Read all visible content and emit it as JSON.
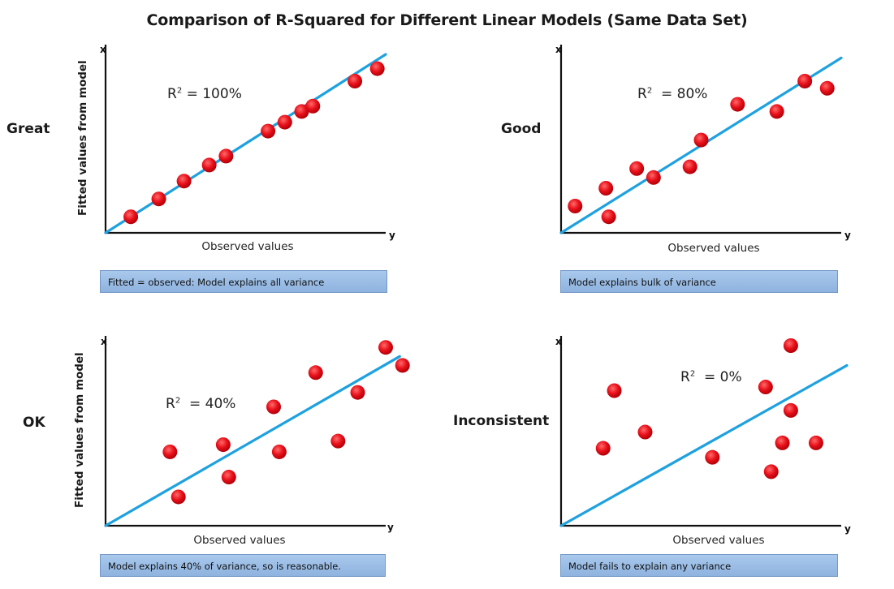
{
  "title": "Comparison of R-Squared for Different Linear Models (Same Data Set)",
  "panels": [
    {
      "rating": "Great",
      "ylabel": "Fitted values from model",
      "xlabel": "Observed values",
      "x_axis_letter": "y",
      "y_axis_letter": "x",
      "r2_prefix": "R",
      "r2_value": "= 100%",
      "caption": "Fitted = observed: Model explains all variance",
      "points": [
        [
          0.09,
          0.09
        ],
        [
          0.19,
          0.19
        ],
        [
          0.28,
          0.29
        ],
        [
          0.37,
          0.38
        ],
        [
          0.43,
          0.43
        ],
        [
          0.58,
          0.57
        ],
        [
          0.64,
          0.62
        ],
        [
          0.7,
          0.68
        ],
        [
          0.74,
          0.71
        ],
        [
          0.89,
          0.85
        ],
        [
          0.97,
          0.92
        ]
      ],
      "line": [
        [
          0,
          0
        ],
        [
          1,
          1.0
        ]
      ]
    },
    {
      "rating": "Good",
      "ylabel": "",
      "xlabel": "Observed values",
      "x_axis_letter": "y",
      "y_axis_letter": "x",
      "r2_prefix": "R",
      "r2_value": "= 80%",
      "caption": "Model explains bulk of variance",
      "points": [
        [
          0.05,
          0.15
        ],
        [
          0.16,
          0.25
        ],
        [
          0.17,
          0.09
        ],
        [
          0.27,
          0.36
        ],
        [
          0.33,
          0.31
        ],
        [
          0.46,
          0.37
        ],
        [
          0.5,
          0.52
        ],
        [
          0.63,
          0.72
        ],
        [
          0.77,
          0.68
        ],
        [
          0.87,
          0.85
        ],
        [
          0.95,
          0.81
        ]
      ],
      "line": [
        [
          0,
          0
        ],
        [
          1,
          0.98
        ]
      ]
    },
    {
      "rating": "OK",
      "ylabel": "Fitted values from model",
      "xlabel": "Observed values",
      "x_axis_letter": "y",
      "y_axis_letter": "x",
      "r2_prefix": "R",
      "r2_value": "= 40%",
      "caption": "Model explains 40% of variance, so is reasonable.",
      "points": [
        [
          0.23,
          0.41
        ],
        [
          0.26,
          0.16
        ],
        [
          0.42,
          0.45
        ],
        [
          0.44,
          0.27
        ],
        [
          0.6,
          0.66
        ],
        [
          0.62,
          0.41
        ],
        [
          0.75,
          0.85
        ],
        [
          0.83,
          0.47
        ],
        [
          0.9,
          0.74
        ],
        [
          1.0,
          0.99
        ],
        [
          1.06,
          0.89
        ]
      ],
      "line": [
        [
          0,
          0
        ],
        [
          1.05,
          0.94
        ]
      ]
    },
    {
      "rating": "Inconsistent",
      "ylabel": "",
      "xlabel": "Observed values",
      "x_axis_letter": "y",
      "y_axis_letter": "x",
      "r2_prefix": "R",
      "r2_value": "= 0%",
      "caption": "Model fails to explain any variance",
      "points": [
        [
          0.15,
          0.43
        ],
        [
          0.19,
          0.75
        ],
        [
          0.3,
          0.52
        ],
        [
          0.54,
          0.38
        ],
        [
          0.73,
          0.77
        ],
        [
          0.75,
          0.3
        ],
        [
          0.79,
          0.46
        ],
        [
          0.82,
          0.64
        ],
        [
          0.82,
          1.0
        ],
        [
          0.91,
          0.46
        ]
      ],
      "line": [
        [
          0,
          0
        ],
        [
          1.02,
          0.89
        ]
      ]
    }
  ],
  "colors": {
    "point": "#e8101a",
    "line": "#1ea1df",
    "axis": "#111111"
  }
}
